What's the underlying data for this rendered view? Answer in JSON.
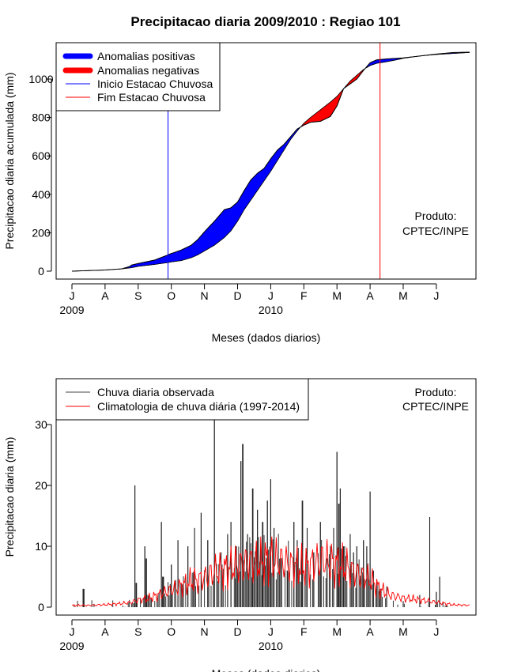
{
  "title": "Precipitacao diaria 2009/2010 : Regiao 101",
  "chart_data": [
    {
      "type": "area",
      "ylabel": "Precipitacao diaria acumulada (mm)",
      "xlabel": "Meses (dados diarios)",
      "x_ticks": [
        "J",
        "A",
        "S",
        "O",
        "N",
        "D",
        "J",
        "F",
        "M",
        "A",
        "M",
        "J"
      ],
      "year_labels": [
        "2009",
        "2010"
      ],
      "y_ticks": [
        0,
        200,
        400,
        600,
        800,
        1000
      ],
      "ylim": [
        -40,
        1190
      ],
      "xlim_months": [
        -0.3,
        12.3
      ],
      "legend": [
        {
          "label": "Anomalias positivas",
          "color": "#0000ff",
          "style": "thick"
        },
        {
          "label": "Anomalias negativas",
          "color": "#ff0000",
          "style": "thick"
        },
        {
          "label": "Inicio Estacao Chuvosa",
          "color": "#0000ff",
          "style": "thin"
        },
        {
          "label": "Fim Estacao Chuvosa",
          "color": "#ff0000",
          "style": "thin"
        }
      ],
      "annotation": [
        "Produto:",
        "CPTEC/INPE"
      ],
      "onset_month": 2.9,
      "end_month": 9.3,
      "observed_cumulative": [
        [
          0,
          0
        ],
        [
          0.5,
          3
        ],
        [
          1,
          6
        ],
        [
          1.5,
          12
        ],
        [
          1.75,
          25
        ],
        [
          1.8,
          32
        ],
        [
          2,
          40
        ],
        [
          2.5,
          58
        ],
        [
          2.9,
          85
        ],
        [
          3,
          92
        ],
        [
          3.3,
          110
        ],
        [
          3.6,
          135
        ],
        [
          3.8,
          165
        ],
        [
          4,
          205
        ],
        [
          4.3,
          260
        ],
        [
          4.6,
          320
        ],
        [
          4.8,
          330
        ],
        [
          5,
          360
        ],
        [
          5.2,
          420
        ],
        [
          5.4,
          475
        ],
        [
          5.6,
          510
        ],
        [
          5.8,
          535
        ],
        [
          6,
          585
        ],
        [
          6.2,
          630
        ],
        [
          6.4,
          660
        ],
        [
          6.6,
          700
        ],
        [
          6.8,
          740
        ],
        [
          7,
          760
        ],
        [
          7.2,
          775
        ],
        [
          7.5,
          780
        ],
        [
          7.8,
          805
        ],
        [
          8,
          860
        ],
        [
          8.2,
          950
        ],
        [
          8.4,
          975
        ],
        [
          8.6,
          1000
        ],
        [
          8.8,
          1045
        ],
        [
          9,
          1085
        ],
        [
          9.2,
          1100
        ],
        [
          9.5,
          1105
        ],
        [
          9.8,
          1108
        ],
        [
          10,
          1110
        ],
        [
          10.5,
          1120
        ],
        [
          11,
          1130
        ],
        [
          11.5,
          1138
        ],
        [
          12,
          1140
        ]
      ],
      "climatology_cumulative": [
        [
          0,
          0
        ],
        [
          0.5,
          3
        ],
        [
          1,
          6
        ],
        [
          1.5,
          12
        ],
        [
          1.8,
          18
        ],
        [
          2,
          25
        ],
        [
          2.5,
          35
        ],
        [
          2.9,
          45
        ],
        [
          3,
          48
        ],
        [
          3.3,
          55
        ],
        [
          3.6,
          70
        ],
        [
          3.8,
          85
        ],
        [
          4,
          105
        ],
        [
          4.3,
          135
        ],
        [
          4.6,
          175
        ],
        [
          4.8,
          210
        ],
        [
          5,
          260
        ],
        [
          5.2,
          320
        ],
        [
          5.4,
          370
        ],
        [
          5.6,
          420
        ],
        [
          5.8,
          470
        ],
        [
          6,
          520
        ],
        [
          6.2,
          575
        ],
        [
          6.4,
          630
        ],
        [
          6.6,
          685
        ],
        [
          6.8,
          730
        ],
        [
          7,
          770
        ],
        [
          7.2,
          800
        ],
        [
          7.5,
          840
        ],
        [
          7.8,
          880
        ],
        [
          8,
          910
        ],
        [
          8.2,
          950
        ],
        [
          8.4,
          990
        ],
        [
          8.6,
          1020
        ],
        [
          8.8,
          1050
        ],
        [
          9,
          1070
        ],
        [
          9.2,
          1082
        ],
        [
          9.5,
          1090
        ],
        [
          9.8,
          1100
        ],
        [
          10,
          1108
        ],
        [
          10.5,
          1120
        ],
        [
          11,
          1128
        ],
        [
          11.5,
          1133
        ],
        [
          12,
          1138
        ]
      ]
    },
    {
      "type": "bar",
      "ylabel": "Precipitacao diaria (mm)",
      "xlabel": "Meses (dados diarios)",
      "x_ticks": [
        "J",
        "A",
        "S",
        "O",
        "N",
        "D",
        "J",
        "F",
        "M",
        "A",
        "M",
        "J"
      ],
      "year_labels": [
        "2009",
        "2010"
      ],
      "y_ticks": [
        0,
        10,
        20,
        30
      ],
      "ylim": [
        -1.5,
        37.5
      ],
      "xlim_months": [
        -0.3,
        12.3
      ],
      "legend": [
        {
          "label": "Chuva diaria observada",
          "color": "#444444"
        },
        {
          "label": "Climatologia de chuva diária (1997-2014)",
          "color": "#ff0000"
        }
      ],
      "annotation": [
        "Produto:",
        "CPTEC/INPE"
      ],
      "observed_daily_peaks": [
        [
          0.35,
          3
        ],
        [
          1.9,
          20
        ],
        [
          1.95,
          4
        ],
        [
          2.2,
          10
        ],
        [
          2.25,
          8
        ],
        [
          2.7,
          14
        ],
        [
          2.75,
          5
        ],
        [
          3,
          7
        ],
        [
          3.2,
          11
        ],
        [
          3.5,
          10
        ],
        [
          3.7,
          13
        ],
        [
          3.9,
          15.5
        ],
        [
          4.1,
          11
        ],
        [
          4.3,
          31
        ],
        [
          4.5,
          9
        ],
        [
          4.7,
          12
        ],
        [
          4.8,
          14
        ],
        [
          4.95,
          10
        ],
        [
          5.1,
          24
        ],
        [
          5.15,
          26.8
        ],
        [
          5.3,
          12
        ],
        [
          5.45,
          19.5
        ],
        [
          5.6,
          16
        ],
        [
          5.75,
          14
        ],
        [
          5.9,
          17.5
        ],
        [
          6,
          21
        ],
        [
          6.1,
          13
        ],
        [
          6.3,
          8
        ],
        [
          6.5,
          6
        ],
        [
          6.7,
          14
        ],
        [
          6.8,
          11
        ],
        [
          6.95,
          17.5
        ],
        [
          7.1,
          13
        ],
        [
          7.3,
          9
        ],
        [
          7.5,
          14
        ],
        [
          7.7,
          8
        ],
        [
          7.9,
          13
        ],
        [
          8,
          25.5
        ],
        [
          8.05,
          17
        ],
        [
          8.1,
          19.5
        ],
        [
          8.2,
          10
        ],
        [
          8.4,
          12
        ],
        [
          8.5,
          9
        ],
        [
          8.6,
          10
        ],
        [
          8.8,
          11
        ],
        [
          8.9,
          10
        ],
        [
          9,
          19
        ],
        [
          9.1,
          6
        ],
        [
          9.3,
          3
        ],
        [
          9.5,
          2
        ],
        [
          10,
          1
        ],
        [
          10.5,
          2
        ],
        [
          10.8,
          14.8
        ],
        [
          11,
          2.5
        ],
        [
          11.1,
          5
        ]
      ],
      "climatology_daily": [
        [
          0,
          0.3
        ],
        [
          0.5,
          0.3
        ],
        [
          1,
          0.4
        ],
        [
          1.5,
          0.6
        ],
        [
          1.8,
          0.8
        ],
        [
          2,
          1.2
        ],
        [
          2.3,
          1.4
        ],
        [
          2.6,
          2
        ],
        [
          3,
          2.8
        ],
        [
          3.3,
          3.5
        ],
        [
          3.6,
          4.2
        ],
        [
          4,
          4.8
        ],
        [
          4.3,
          5.8
        ],
        [
          4.6,
          6.2
        ],
        [
          5,
          6.8
        ],
        [
          5.3,
          7.5
        ],
        [
          5.6,
          7.2
        ],
        [
          6,
          8
        ],
        [
          6.3,
          7.5
        ],
        [
          6.6,
          7
        ],
        [
          7,
          6.5
        ],
        [
          7.3,
          7.2
        ],
        [
          7.6,
          7.8
        ],
        [
          8,
          7
        ],
        [
          8.3,
          6.5
        ],
        [
          8.6,
          5.5
        ],
        [
          9,
          4.5
        ],
        [
          9.3,
          3
        ],
        [
          9.6,
          2
        ],
        [
          10,
          1.5
        ],
        [
          10.5,
          1.2
        ],
        [
          11,
          0.8
        ],
        [
          11.5,
          0.4
        ],
        [
          12,
          0.3
        ]
      ]
    }
  ]
}
